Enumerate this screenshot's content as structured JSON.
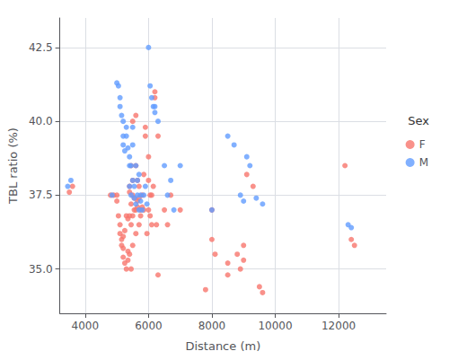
{
  "chart_data": {
    "type": "scatter",
    "xlabel": "Distance (m)",
    "ylabel": "TBL ratio (%)",
    "legend_title": "Sex",
    "legend": "right",
    "grid": true,
    "xlim": [
      3200,
      13500
    ],
    "ylim": [
      33.5,
      43.5
    ],
    "xticks": [
      4000,
      6000,
      8000,
      10000,
      12000
    ],
    "yticks": [
      {
        "value": 35,
        "label": "35.0"
      },
      37.5,
      {
        "value": 40,
        "label": "40.0"
      },
      42.5
    ],
    "series": [
      {
        "name": "F",
        "color": "#F8766D",
        "x": [
          3500,
          3600,
          4800,
          4900,
          5000,
          5000,
          5050,
          5100,
          5100,
          5150,
          5150,
          5200,
          5200,
          5200,
          5250,
          5250,
          5300,
          5300,
          5350,
          5350,
          5350,
          5400,
          5400,
          5400,
          5400,
          5450,
          5450,
          5450,
          5450,
          5500,
          5500,
          5500,
          5500,
          5500,
          5550,
          5550,
          5600,
          5600,
          5600,
          5600,
          5650,
          5650,
          5650,
          5700,
          5700,
          5700,
          5750,
          5750,
          5800,
          5800,
          5850,
          5850,
          5900,
          5900,
          5950,
          6000,
          6000,
          6000,
          6050,
          6050,
          6100,
          6100,
          6150,
          6200,
          6200,
          6250,
          6300,
          6300,
          6500,
          6600,
          6700,
          7000,
          7800,
          8000,
          8000,
          8100,
          8500,
          8500,
          8800,
          8900,
          9000,
          9000,
          9100,
          9300,
          9500,
          9600,
          12200,
          12400,
          12500
        ],
        "values": [
          37.6,
          37.8,
          37.5,
          37.5,
          37.3,
          37.5,
          36.8,
          36.2,
          36.5,
          36.0,
          35.8,
          36.1,
          35.7,
          35.4,
          36.3,
          35.2,
          36.8,
          35.0,
          36.7,
          35.6,
          35.3,
          37.8,
          36.8,
          37.6,
          35.5,
          38.5,
          37.2,
          36.5,
          35.0,
          40.0,
          38.0,
          37.5,
          36.8,
          35.8,
          37.4,
          37.0,
          40.2,
          38.5,
          37.0,
          36.2,
          38.0,
          37.3,
          37.1,
          37.8,
          37.4,
          36.5,
          37.0,
          36.8,
          37.5,
          37.1,
          38.2,
          37.0,
          39.8,
          39.5,
          36.2,
          38.8,
          38.0,
          37.0,
          37.5,
          36.8,
          37.5,
          36.5,
          37.8,
          41.0,
          40.8,
          36.5,
          39.5,
          34.8,
          37.0,
          36.5,
          37.5,
          37.0,
          34.3,
          37.0,
          36.0,
          35.5,
          35.2,
          34.8,
          35.5,
          35.0,
          35.3,
          35.8,
          38.2,
          37.8,
          34.4,
          34.2,
          38.5,
          36.0,
          35.8
        ]
      },
      {
        "name": "M",
        "color": "#619CFF",
        "x": [
          3450,
          3550,
          4850,
          5000,
          5050,
          5100,
          5100,
          5150,
          5200,
          5200,
          5200,
          5250,
          5300,
          5300,
          5350,
          5400,
          5400,
          5400,
          5450,
          5450,
          5500,
          5500,
          5500,
          5550,
          5550,
          5600,
          5600,
          5650,
          5650,
          5700,
          5700,
          5750,
          5750,
          5800,
          5850,
          5900,
          5950,
          6000,
          6050,
          6100,
          6150,
          6200,
          6200,
          6300,
          6500,
          6600,
          6700,
          6800,
          7000,
          8000,
          8500,
          8700,
          8900,
          9000,
          9100,
          9200,
          9400,
          9600,
          12300,
          12400
        ],
        "values": [
          37.8,
          38.0,
          37.5,
          41.3,
          41.2,
          40.8,
          40.5,
          40.2,
          40.0,
          39.5,
          39.2,
          39.0,
          39.8,
          39.5,
          39.1,
          38.8,
          38.5,
          37.8,
          38.5,
          37.5,
          39.8,
          39.2,
          38.0,
          37.8,
          37.4,
          38.5,
          37.2,
          38.0,
          37.5,
          38.2,
          37.0,
          37.5,
          37.3,
          37.0,
          37.5,
          37.8,
          37.2,
          42.5,
          41.2,
          40.8,
          40.5,
          40.3,
          40.5,
          40.0,
          38.5,
          37.5,
          38.0,
          37.0,
          38.5,
          37.0,
          39.5,
          39.2,
          37.5,
          37.3,
          38.8,
          38.5,
          37.4,
          37.2,
          36.5,
          36.4
        ]
      }
    ]
  }
}
